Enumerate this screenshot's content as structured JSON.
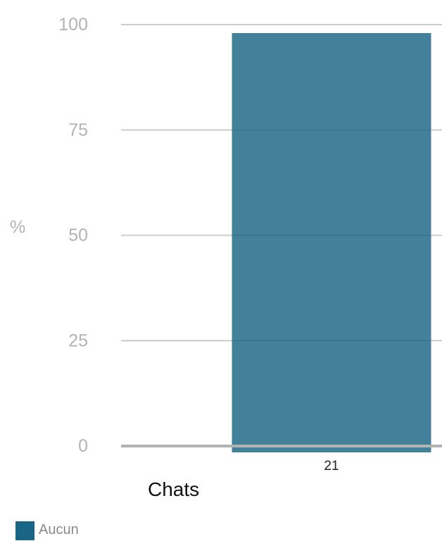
{
  "chart_data": {
    "type": "bar",
    "categories": [
      "21"
    ],
    "series": [
      {
        "name": "Aucun",
        "values": [
          98
        ]
      }
    ],
    "ylabel": "%",
    "xlabel": "Chats",
    "yticks": [
      "0",
      "25",
      "50",
      "75",
      "100"
    ],
    "ylim": [
      0,
      100
    ],
    "grid": true,
    "legend": "bottom-left",
    "colors": {
      "bar": "#1a6585",
      "grid": "#cccccc",
      "baseline": "#b3b3b3"
    }
  }
}
